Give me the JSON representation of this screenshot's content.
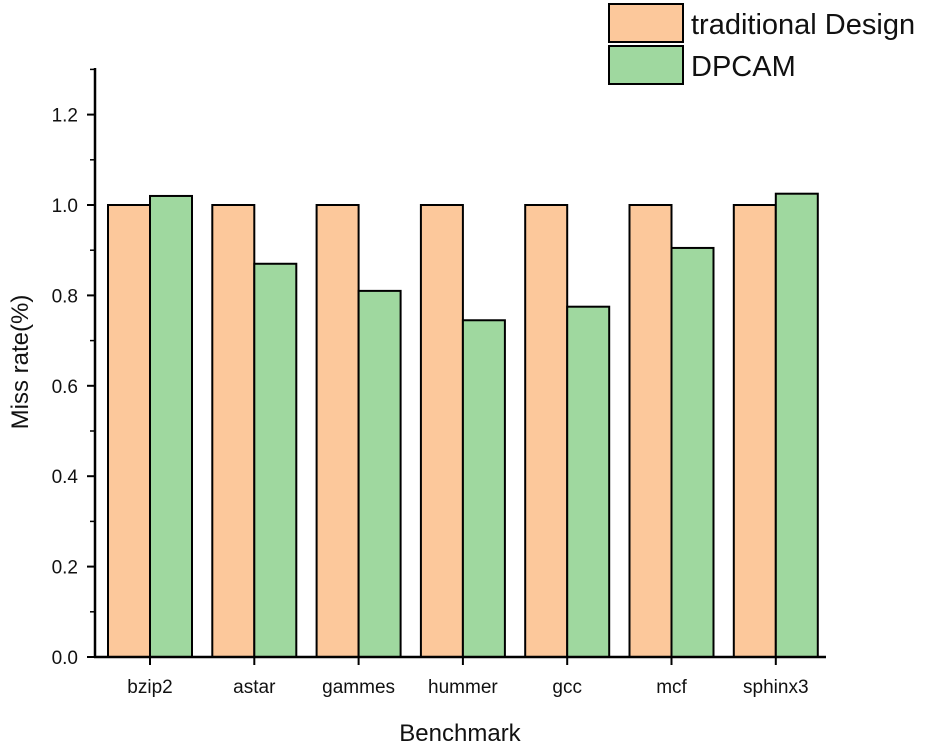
{
  "chart_data": {
    "type": "bar",
    "title": "",
    "xlabel": "Benchmark",
    "ylabel": "Miss rate(%)",
    "categories": [
      "bzip2",
      "astar",
      "gammes",
      "hummer",
      "gcc",
      "mcf",
      "sphinx3"
    ],
    "series": [
      {
        "name": "traditional Design",
        "color": "#fcc89b",
        "values": [
          1.0,
          1.0,
          1.0,
          1.0,
          1.0,
          1.0,
          1.0
        ]
      },
      {
        "name": "DPCAM",
        "color": "#9fd89f",
        "values": [
          1.02,
          0.87,
          0.81,
          0.745,
          0.775,
          0.905,
          1.025
        ]
      }
    ],
    "ylim": [
      0,
      1.3
    ],
    "yticks": [
      "0.0",
      "0.2",
      "0.4",
      "0.6",
      "0.8",
      "1.0",
      "1.2"
    ],
    "ytick_values": [
      0,
      0.2,
      0.4,
      0.6,
      0.8,
      1.0,
      1.2
    ],
    "grid": false,
    "legend_position": "top-right"
  }
}
